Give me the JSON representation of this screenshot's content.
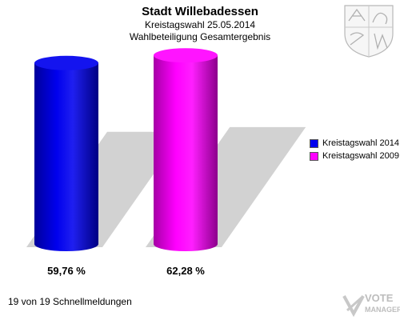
{
  "chart_data": {
    "type": "bar",
    "title": "Stadt Willebadessen",
    "subtitle": "Kreistagswahl 25.05.2014",
    "subtitle2": "Wahlbeteiligung Gesamtergebnis",
    "categories": [
      "Kreistagswahl 2014",
      "Kreistagswahl 2009"
    ],
    "values": [
      59.76,
      62.28
    ],
    "value_labels": [
      "59,76 %",
      "62,28 %"
    ],
    "colors": [
      "#0000ee",
      "#ff00ff"
    ],
    "ylim": [
      0,
      70
    ],
    "legend": {
      "position": "right",
      "entries": [
        "Kreistagswahl 2014",
        "Kreistagswahl 2009"
      ]
    },
    "grid": false,
    "style": "3d-cylinder"
  },
  "footer": "19 von 19 Schnellmeldungen",
  "brand": {
    "line1": "VOTE",
    "line2": "MANAGER"
  },
  "icons": {
    "crest": "coat-of-arms-icon",
    "brand": "votemanager-logo-icon"
  }
}
